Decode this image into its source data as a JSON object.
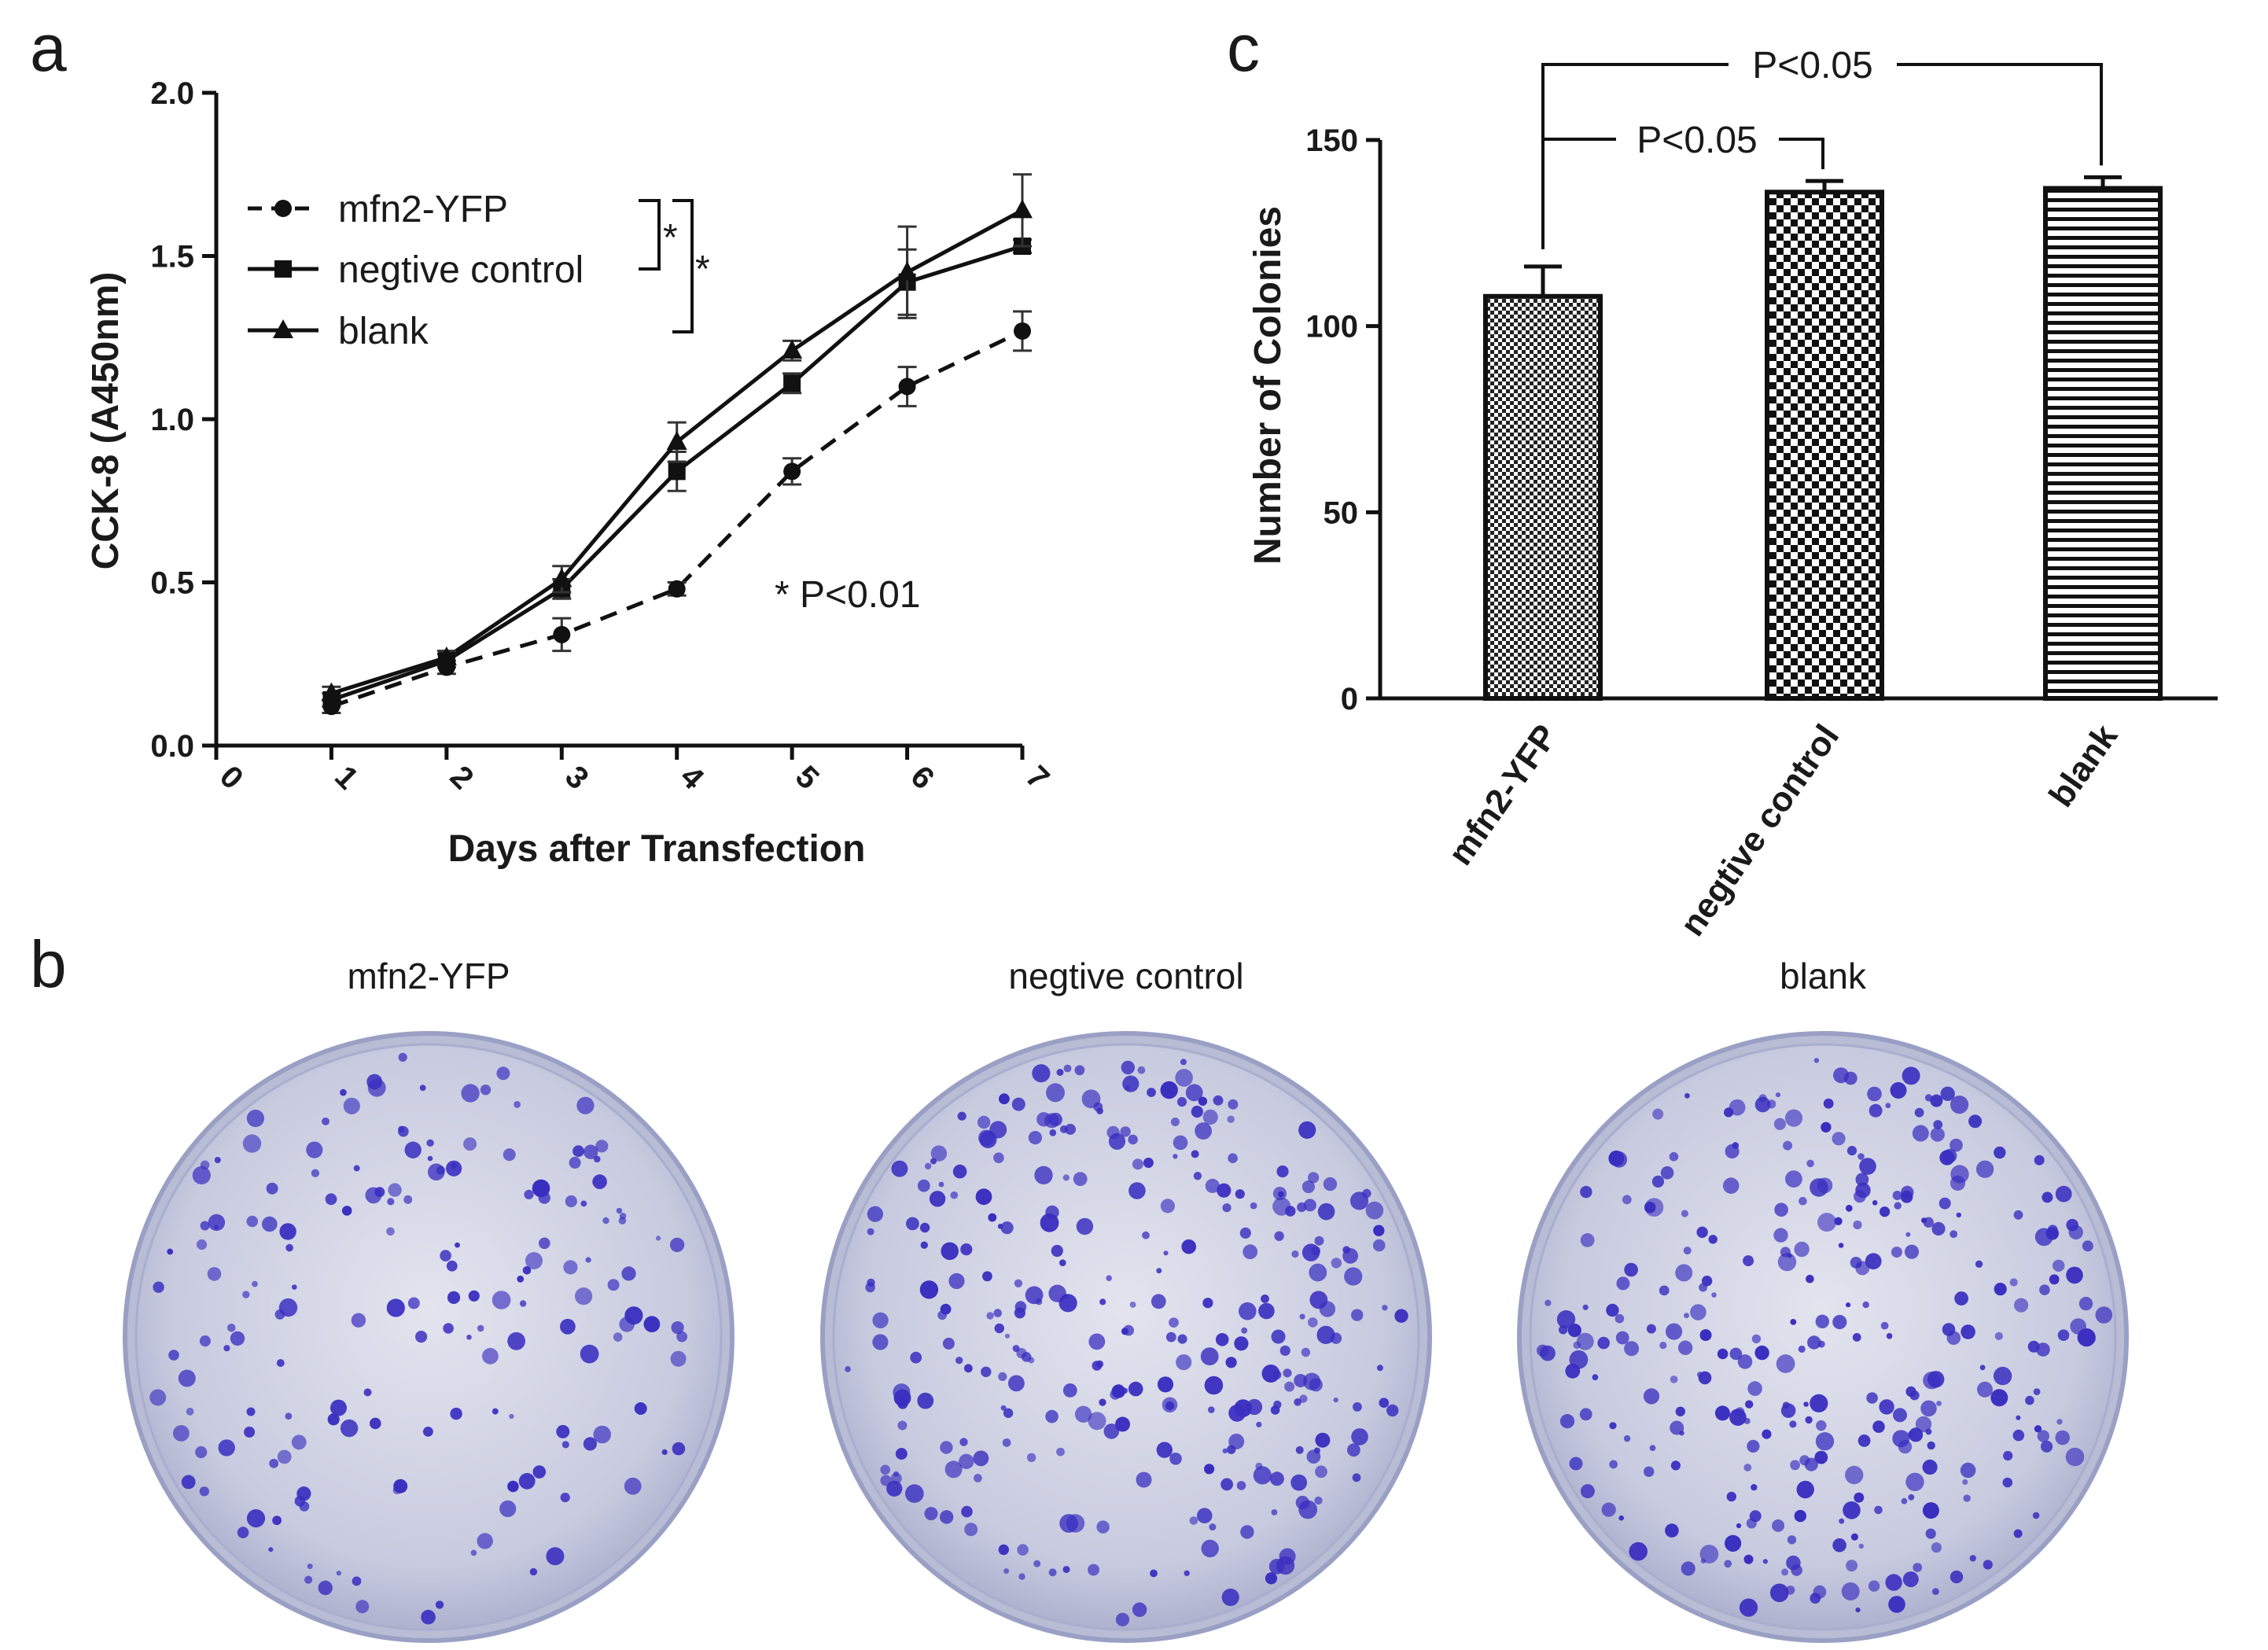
{
  "panels": {
    "a": "a",
    "b": "b",
    "c": "c"
  },
  "chart_data": [
    {
      "panel": "a",
      "type": "line",
      "xlabel": "Days after Transfection",
      "ylabel": "CCK-8 (A450nm)",
      "xlim": [
        0,
        7
      ],
      "ylim": [
        0,
        2.0
      ],
      "x_ticks": [
        "0",
        "1",
        "2",
        "3",
        "4",
        "5",
        "6",
        "7"
      ],
      "y_ticks": [
        "0.0",
        "0.5",
        "1.0",
        "1.5",
        "2.0"
      ],
      "x": [
        1,
        2,
        3,
        4,
        5,
        6,
        7
      ],
      "legend_position": "top-left",
      "series": [
        {
          "name": "mfn2-YFP",
          "marker": "circle",
          "line": "dashed",
          "values": [
            0.12,
            0.24,
            0.34,
            0.48,
            0.84,
            1.1,
            1.27
          ],
          "errors": [
            0.02,
            0.02,
            0.05,
            0.02,
            0.04,
            0.06,
            0.06
          ]
        },
        {
          "name": "negtive control",
          "marker": "square",
          "line": "solid",
          "values": [
            0.14,
            0.26,
            0.48,
            0.84,
            1.11,
            1.42,
            1.53
          ],
          "errors": [
            0.02,
            0.02,
            0.03,
            0.06,
            0.03,
            0.1,
            0.02
          ]
        },
        {
          "name": "blank",
          "marker": "triangle",
          "line": "solid",
          "values": [
            0.16,
            0.27,
            0.51,
            0.93,
            1.21,
            1.45,
            1.64
          ],
          "errors": [
            0.02,
            0.02,
            0.04,
            0.06,
            0.03,
            0.14,
            0.11
          ]
        }
      ],
      "significance": {
        "bracket_mark": "*",
        "note": "* P<0.01"
      }
    },
    {
      "panel": "c",
      "type": "bar",
      "ylabel": "Number of Colonies",
      "ylim": [
        0,
        150
      ],
      "y_ticks": [
        "0",
        "50",
        "100",
        "150"
      ],
      "categories": [
        "mfn2-YFP",
        "negtive control",
        "blank"
      ],
      "values": [
        108,
        136,
        137
      ],
      "errors": [
        8,
        3,
        3
      ],
      "patterns": [
        "fine-checker",
        "coarse-checker",
        "horizontal-lines"
      ],
      "comparisons": [
        {
          "from": "mfn2-YFP",
          "to": "negtive control",
          "label": "P<0.05"
        },
        {
          "from": "mfn2-YFP",
          "to": "blank",
          "label": "P<0.05"
        }
      ]
    }
  ],
  "dishes": {
    "labels": [
      "mfn2-YFP",
      "negtive control",
      "blank"
    ],
    "colony_color": "#3a2ec0",
    "plate_color": "#c5c8dc"
  }
}
